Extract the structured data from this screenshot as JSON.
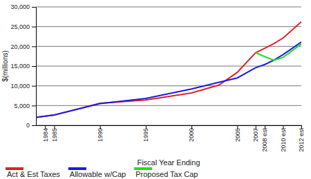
{
  "chart_data": {
    "type": "line",
    "y_label": "$(millions)",
    "x_label": "Fiscal Year Ending",
    "x": [
      1983,
      1985,
      1990,
      1995,
      2000,
      2003,
      2005,
      2007,
      2008,
      2009,
      2010,
      2012
    ],
    "series": [
      {
        "name": "Act & Est Taxes",
        "color": "#e02028",
        "values": [
          2000,
          2600,
          5600,
          6400,
          8200,
          10200,
          13400,
          18400,
          19500,
          20700,
          22100,
          26200
        ]
      },
      {
        "name": "Allowable w/Cap",
        "color": "#1a1ae6",
        "values": [
          2000,
          2600,
          5500,
          6800,
          9200,
          10900,
          12000,
          14600,
          15400,
          16500,
          17900,
          21100
        ]
      },
      {
        "name": "Proposed Tax Cap",
        "color": "#22dd22",
        "values": [
          null,
          null,
          null,
          null,
          null,
          null,
          null,
          18400,
          17400,
          16500,
          17200,
          20600
        ]
      }
    ],
    "xlim": [
      1983,
      2012
    ],
    "xticks": [
      {
        "value": 1984,
        "label": "1984"
      },
      {
        "value": 1985,
        "label": "1985"
      },
      {
        "value": 1990,
        "label": "1990"
      },
      {
        "value": 1995,
        "label": "1995"
      },
      {
        "value": 2000,
        "label": "2000"
      },
      {
        "value": 2005,
        "label": "2005"
      },
      {
        "value": 2007,
        "label": "2007"
      },
      {
        "value": 2008,
        "label": "2008 est"
      },
      {
        "value": 2010,
        "label": "2010 est"
      },
      {
        "value": 2012,
        "label": "2012 est"
      }
    ],
    "ylim": [
      0,
      30000
    ],
    "yticks": [
      0,
      {
        "value": 5000,
        "label": "5,000"
      },
      {
        "value": 10000,
        "label": "10,000"
      },
      {
        "value": 15000,
        "label": "15,000"
      },
      {
        "value": 20000,
        "label": "20,000"
      },
      {
        "value": 25000,
        "label": "25,000"
      },
      {
        "value": 30000,
        "label": "30,000"
      }
    ],
    "grid": true,
    "legend": "bottom"
  }
}
